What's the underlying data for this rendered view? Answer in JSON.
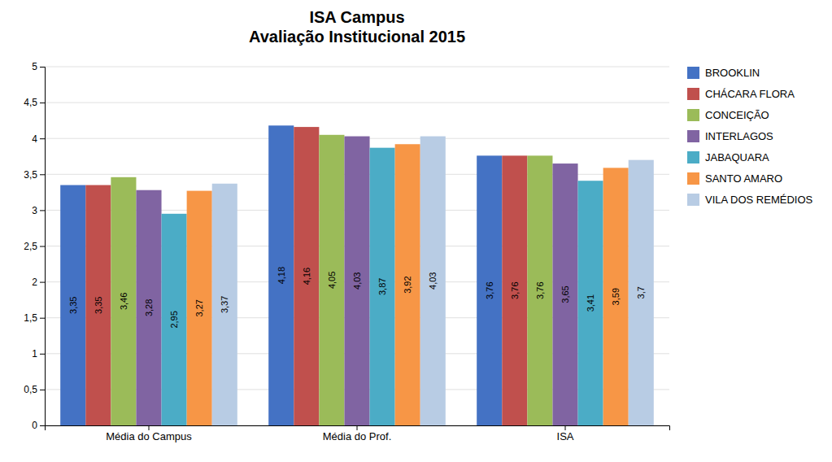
{
  "chart_data": {
    "type": "bar",
    "title": "ISA Campus\nAvaliação Institucional 2015",
    "categories": [
      "Média do Campus",
      "Média do Prof.",
      "ISA"
    ],
    "series": [
      {
        "name": "BROOKLIN",
        "color": "#4472C4",
        "values": [
          3.35,
          4.18,
          3.76
        ],
        "value_labels": [
          "3,35",
          "4,18",
          "3,76"
        ]
      },
      {
        "name": "CHÁCARA FLORA",
        "color": "#C0504D",
        "values": [
          3.35,
          4.16,
          3.76
        ],
        "value_labels": [
          "3,35",
          "4,16",
          "3,76"
        ]
      },
      {
        "name": "CONCEIÇÃO",
        "color": "#9BBB59",
        "values": [
          3.46,
          4.05,
          3.76
        ],
        "value_labels": [
          "3,46",
          "4,05",
          "3,76"
        ]
      },
      {
        "name": "INTERLAGOS",
        "color": "#8064A2",
        "values": [
          3.28,
          4.03,
          3.65
        ],
        "value_labels": [
          "3,28",
          "4,03",
          "3,65"
        ]
      },
      {
        "name": "JABAQUARA",
        "color": "#4BACC6",
        "values": [
          2.95,
          3.87,
          3.41
        ],
        "value_labels": [
          "2,95",
          "3,87",
          "3,41"
        ]
      },
      {
        "name": "SANTO AMARO",
        "color": "#F79646",
        "values": [
          3.27,
          3.92,
          3.59
        ],
        "value_labels": [
          "3,27",
          "3,92",
          "3,59"
        ]
      },
      {
        "name": "VILA DOS REMÉDIOS",
        "color": "#B8CCE4",
        "values": [
          3.37,
          4.03,
          3.7
        ],
        "value_labels": [
          "3,37",
          "4,03",
          "3,7"
        ]
      }
    ],
    "ylim": [
      0,
      5
    ],
    "yticks": [
      0,
      {
        "value": 0.5,
        "label": "0,5"
      },
      1,
      {
        "value": 1.5,
        "label": "1,5"
      },
      2,
      {
        "value": 2.5,
        "label": "2,5"
      },
      3,
      {
        "value": 3.5,
        "label": "3,5"
      },
      4,
      {
        "value": 4.5,
        "label": "4,5"
      },
      5
    ],
    "grid": true,
    "legend": "right",
    "data_labels": true
  }
}
